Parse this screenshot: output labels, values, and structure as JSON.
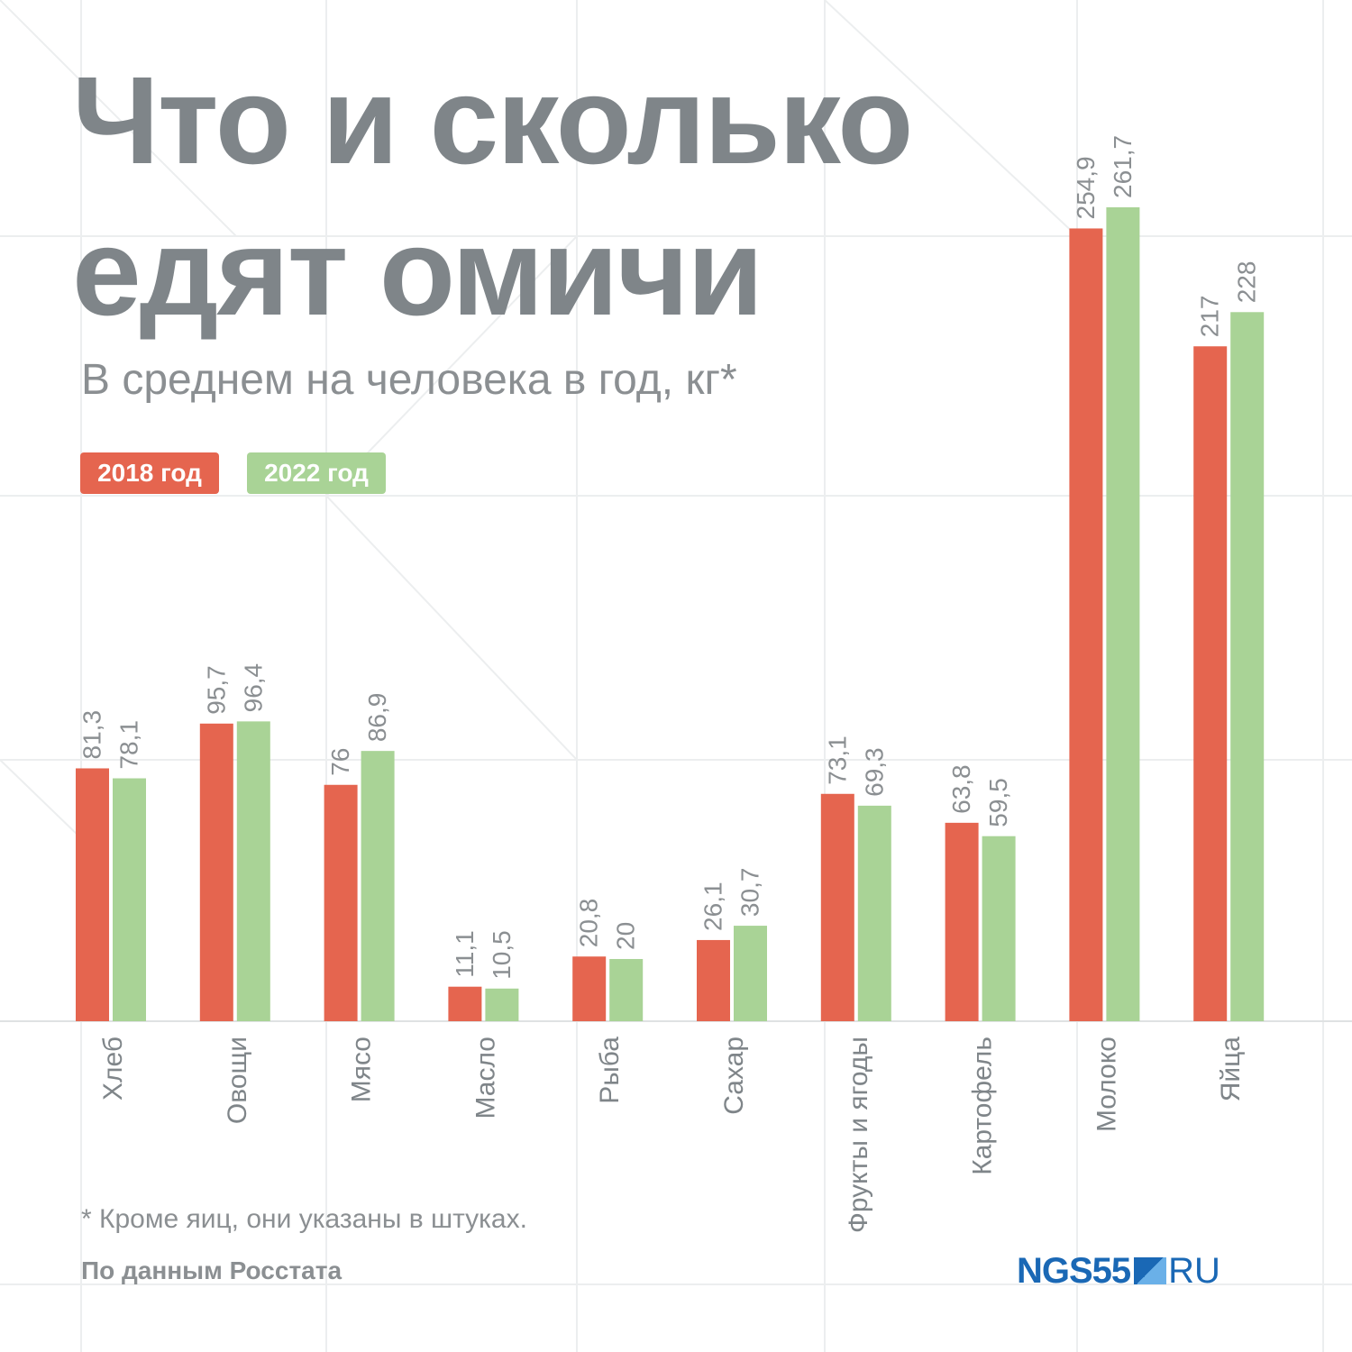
{
  "header": {
    "title_line1": "Что и сколько",
    "title_line2": "едят омичи",
    "subtitle": "В среднем на человека в год, кг*"
  },
  "legend": [
    {
      "label": "2018 год",
      "color": "#e5654f"
    },
    {
      "label": "2022 год",
      "color": "#a9d396"
    }
  ],
  "chart_data": {
    "type": "bar",
    "title": "Что и сколько едят омичи",
    "subtitle": "В среднем на человека в год, кг*",
    "categories": [
      "Хлеб",
      "Овощи",
      "Мясо",
      "Масло",
      "Рыба",
      "Сахар",
      "Фрукты и ягоды",
      "Картофель",
      "Молоко",
      "Яйца"
    ],
    "series": [
      {
        "name": "2018 год",
        "color": "#e5654f",
        "values": [
          81.3,
          95.7,
          76,
          11.1,
          20.8,
          26.1,
          73.1,
          63.8,
          254.9,
          217
        ],
        "labels": [
          "81,3",
          "95,7",
          "76",
          "11,1",
          "20,8",
          "26,1",
          "73,1",
          "63,8",
          "254,9",
          "217"
        ]
      },
      {
        "name": "2022 год",
        "color": "#a9d396",
        "values": [
          78.1,
          96.4,
          86.9,
          10.5,
          20,
          30.7,
          69.3,
          59.5,
          261.7,
          228
        ],
        "labels": [
          "78,1",
          "96,4",
          "86,9",
          "10,5",
          "20",
          "30,7",
          "69,3",
          "59,5",
          "261,7",
          "228"
        ]
      }
    ],
    "grid": false,
    "legend_position": "top-left"
  },
  "footnote": "* Кроме яиц, они указаны в штуках.",
  "source": "По данным Росстата",
  "logo": {
    "part1": "NGS55",
    "part2": "RU"
  }
}
